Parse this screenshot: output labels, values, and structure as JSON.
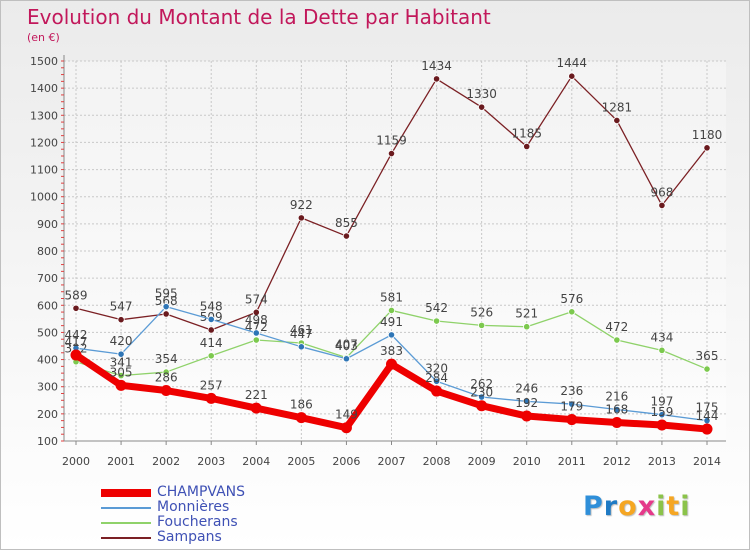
{
  "header": {
    "title": "Evolution du Montant de la Dette par Habitant",
    "subtitle": "(en €)"
  },
  "logo": {
    "text": "Proxiti",
    "letters": [
      {
        "ch": "P",
        "color": "#2f8fd9"
      },
      {
        "ch": "r",
        "color": "#1f7ac4"
      },
      {
        "ch": "o",
        "color": "#f5a623"
      },
      {
        "ch": "x",
        "color": "#e5398a"
      },
      {
        "ch": "i",
        "color": "#8bc34a"
      },
      {
        "ch": "t",
        "color": "#f5a623"
      },
      {
        "ch": "i",
        "color": "#8bc34a"
      }
    ]
  },
  "chart_data": {
    "type": "line",
    "title": "Evolution du Montant de la Dette par Habitant",
    "ylabel": "(en €)",
    "xlabel": "",
    "x": [
      "2000",
      "2001",
      "2002",
      "2003",
      "2004",
      "2005",
      "2006",
      "2007",
      "2008",
      "2009",
      "2010",
      "2011",
      "2012",
      "2013",
      "2014"
    ],
    "ylim": [
      100,
      1500
    ],
    "yticks": [
      100,
      200,
      300,
      400,
      500,
      600,
      700,
      800,
      900,
      1000,
      1100,
      1200,
      1300,
      1400,
      1500
    ],
    "grid": true,
    "legend_placement": "bottom-left",
    "series": [
      {
        "name": "Sampans",
        "color": "#7b2024",
        "marker": "#6a1a1e",
        "values": [
          589,
          547,
          568,
          509,
          574,
          922,
          855,
          1159,
          1434,
          1330,
          1185,
          1444,
          1281,
          968,
          1180
        ]
      },
      {
        "name": "Foucherans",
        "color": "#8fd26a",
        "marker": "#7cc94e",
        "values": [
          392,
          341,
          354,
          414,
          472,
          461,
          407,
          581,
          542,
          526,
          521,
          576,
          472,
          434,
          365
        ]
      },
      {
        "name": "Monnières",
        "color": "#5b9bd5",
        "marker": "#2e75b6",
        "values": [
          442,
          420,
          595,
          548,
          498,
          447,
          403,
          491,
          320,
          262,
          246,
          236,
          216,
          197,
          175
        ]
      },
      {
        "name": "CHAMPVANS",
        "color": "#ee0000",
        "marker": "#ee0000",
        "values": [
          417,
          305,
          286,
          257,
          221,
          186,
          149,
          383,
          284,
          230,
          192,
          179,
          168,
          159,
          144
        ]
      }
    ]
  }
}
